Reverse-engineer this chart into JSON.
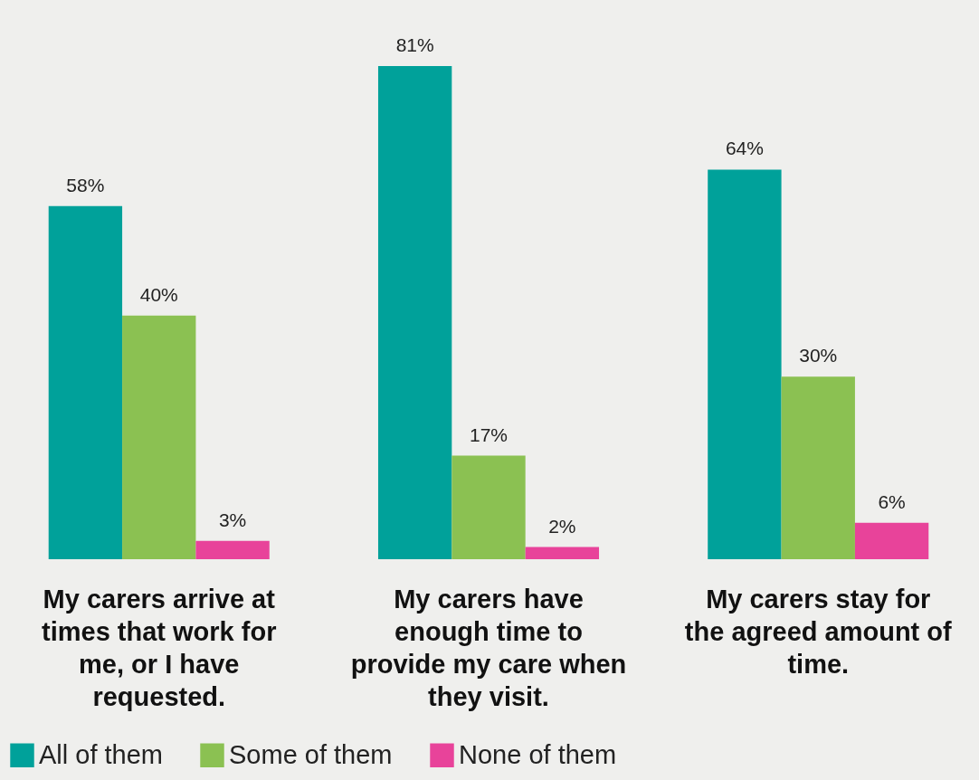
{
  "chart_data": {
    "type": "bar",
    "categories": [
      "My carers arrive at times that work for me, or I have requested.",
      "My carers have enough time to provide my care when they visit.",
      "My carers stay for the agreed amount of time."
    ],
    "series": [
      {
        "name": "All of them",
        "color": "#00a19a",
        "values": [
          58,
          81,
          64
        ],
        "value_labels": [
          "58%",
          "81%",
          "64%"
        ]
      },
      {
        "name": "Some of them",
        "color": "#8bc152",
        "values": [
          40,
          17,
          30
        ],
        "value_labels": [
          "40%",
          "17%",
          "30%"
        ]
      },
      {
        "name": "None of them",
        "color": "#e8439a",
        "values": [
          3,
          2,
          6
        ],
        "value_labels": [
          "3%",
          "2%",
          "6%"
        ]
      }
    ],
    "legend": "bottom left",
    "grid": false
  }
}
